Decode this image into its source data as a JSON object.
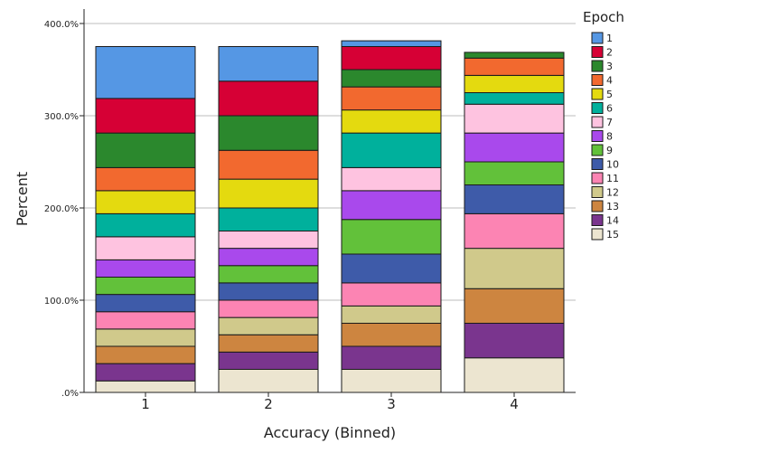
{
  "chart_data": {
    "type": "bar",
    "stacked": true,
    "xlabel": "Accuracy (Binned)",
    "ylabel": "Percent",
    "ylim": [
      0,
      400
    ],
    "y_ticks": [
      0,
      100,
      200,
      300,
      400
    ],
    "y_tick_labels": [
      ".0%",
      "100.0%",
      "200.0%",
      "300.0%",
      "400.0%"
    ],
    "grid": "horizontal",
    "legend_title": "Epoch",
    "legend_position": "right",
    "categories": [
      "1",
      "2",
      "3",
      "4"
    ],
    "series": [
      {
        "name": "15",
        "color": "#ece5d0",
        "values": [
          12.5,
          25.0,
          25.0,
          37.5
        ]
      },
      {
        "name": "14",
        "color": "#7a358e",
        "values": [
          18.75,
          18.75,
          25.0,
          37.5
        ]
      },
      {
        "name": "13",
        "color": "#cd8540",
        "values": [
          18.75,
          18.75,
          25.0,
          37.5
        ]
      },
      {
        "name": "12",
        "color": "#d0c98b",
        "values": [
          18.75,
          18.75,
          18.75,
          43.75
        ]
      },
      {
        "name": "11",
        "color": "#fc84b3",
        "values": [
          18.75,
          18.75,
          25.0,
          37.5
        ]
      },
      {
        "name": "10",
        "color": "#3e5ba9",
        "values": [
          18.75,
          18.75,
          31.25,
          31.25
        ]
      },
      {
        "name": "9",
        "color": "#62c13a",
        "values": [
          18.75,
          18.75,
          37.5,
          25.0
        ]
      },
      {
        "name": "8",
        "color": "#a949ec",
        "values": [
          18.75,
          18.75,
          31.25,
          31.25
        ]
      },
      {
        "name": "7",
        "color": "#fec3e0",
        "values": [
          25.0,
          18.75,
          25.0,
          31.25
        ]
      },
      {
        "name": "6",
        "color": "#00b09c",
        "values": [
          25.0,
          25.0,
          37.5,
          12.5
        ]
      },
      {
        "name": "5",
        "color": "#e4da0f",
        "values": [
          25.0,
          31.25,
          25.0,
          18.75
        ]
      },
      {
        "name": "4",
        "color": "#f2692f",
        "values": [
          25.0,
          31.25,
          25.0,
          18.75
        ]
      },
      {
        "name": "3",
        "color": "#2b882d",
        "values": [
          37.5,
          37.5,
          18.75,
          6.25
        ]
      },
      {
        "name": "2",
        "color": "#d60035",
        "values": [
          37.5,
          37.5,
          25.0,
          0
        ]
      },
      {
        "name": "1",
        "color": "#5597e4",
        "values": [
          56.25,
          37.5,
          6.25,
          0
        ]
      }
    ]
  }
}
